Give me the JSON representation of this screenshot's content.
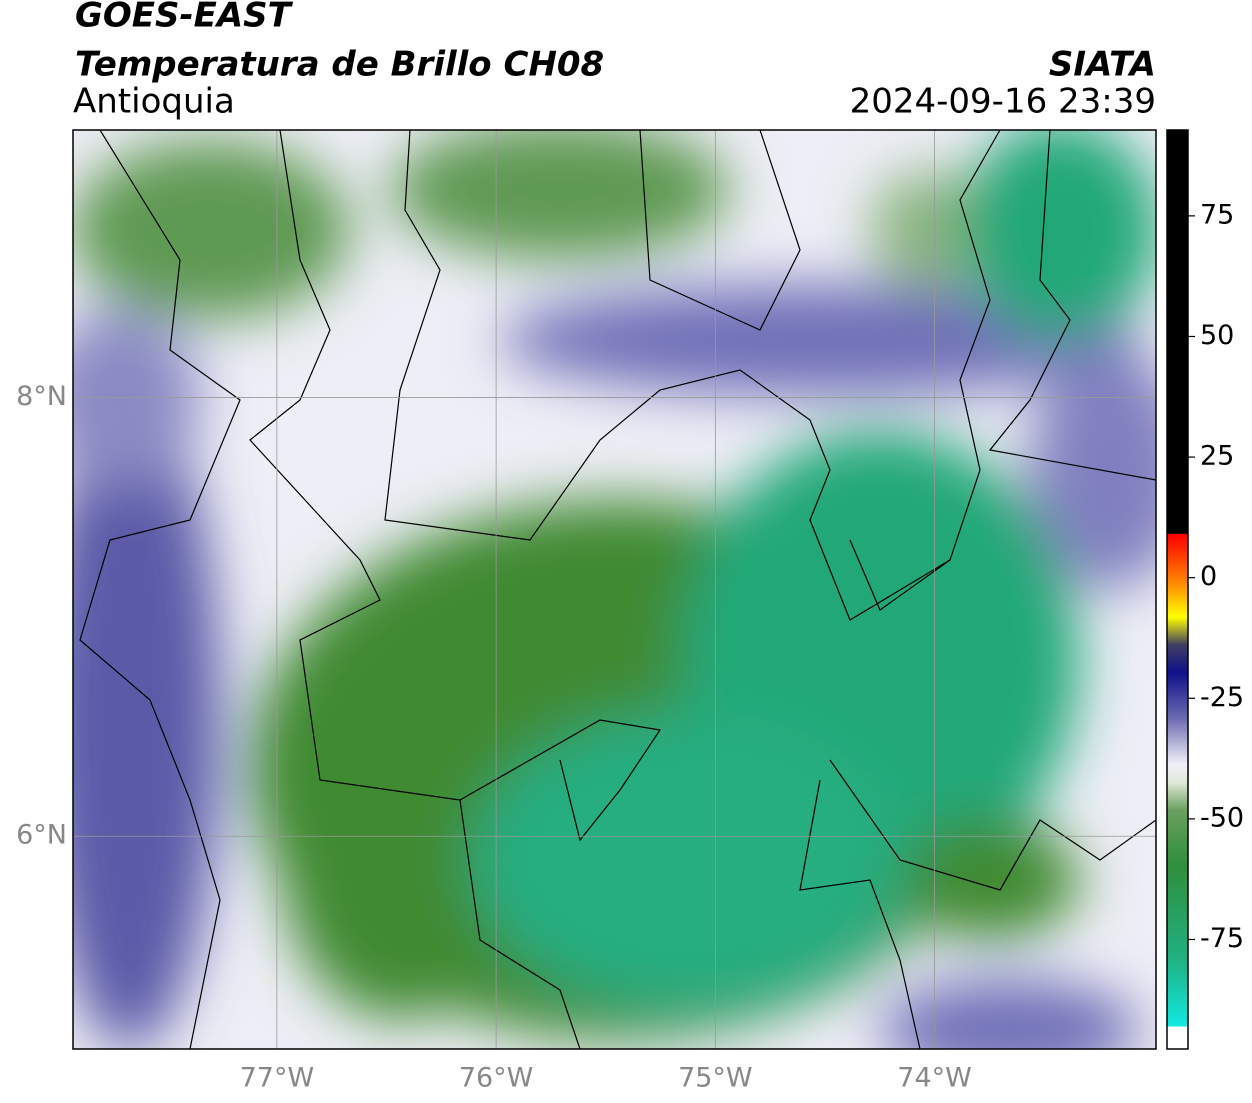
{
  "header": {
    "title": "GOES-EAST",
    "subtitle": "Temperatura de Brillo CH08",
    "region": "Antioquia",
    "source": "SIATA",
    "timestamp": "2024-09-16 23:39"
  },
  "map": {
    "xlim": [
      -77.93,
      -72.99
    ],
    "ylim": [
      5.03,
      9.22
    ],
    "xticks": [
      {
        "value": -77,
        "label": "77°W"
      },
      {
        "value": -76,
        "label": "76°W"
      },
      {
        "value": -75,
        "label": "75°W"
      },
      {
        "value": -74,
        "label": "74°W"
      }
    ],
    "yticks": [
      {
        "value": 6,
        "label": "6°N"
      },
      {
        "value": 8,
        "label": "8°N"
      }
    ],
    "grid": true
  },
  "colorbar": {
    "lim": [
      -97.7,
      92.8
    ],
    "ticks": [
      75,
      50,
      25,
      0,
      -25,
      -50,
      -75
    ]
  }
}
